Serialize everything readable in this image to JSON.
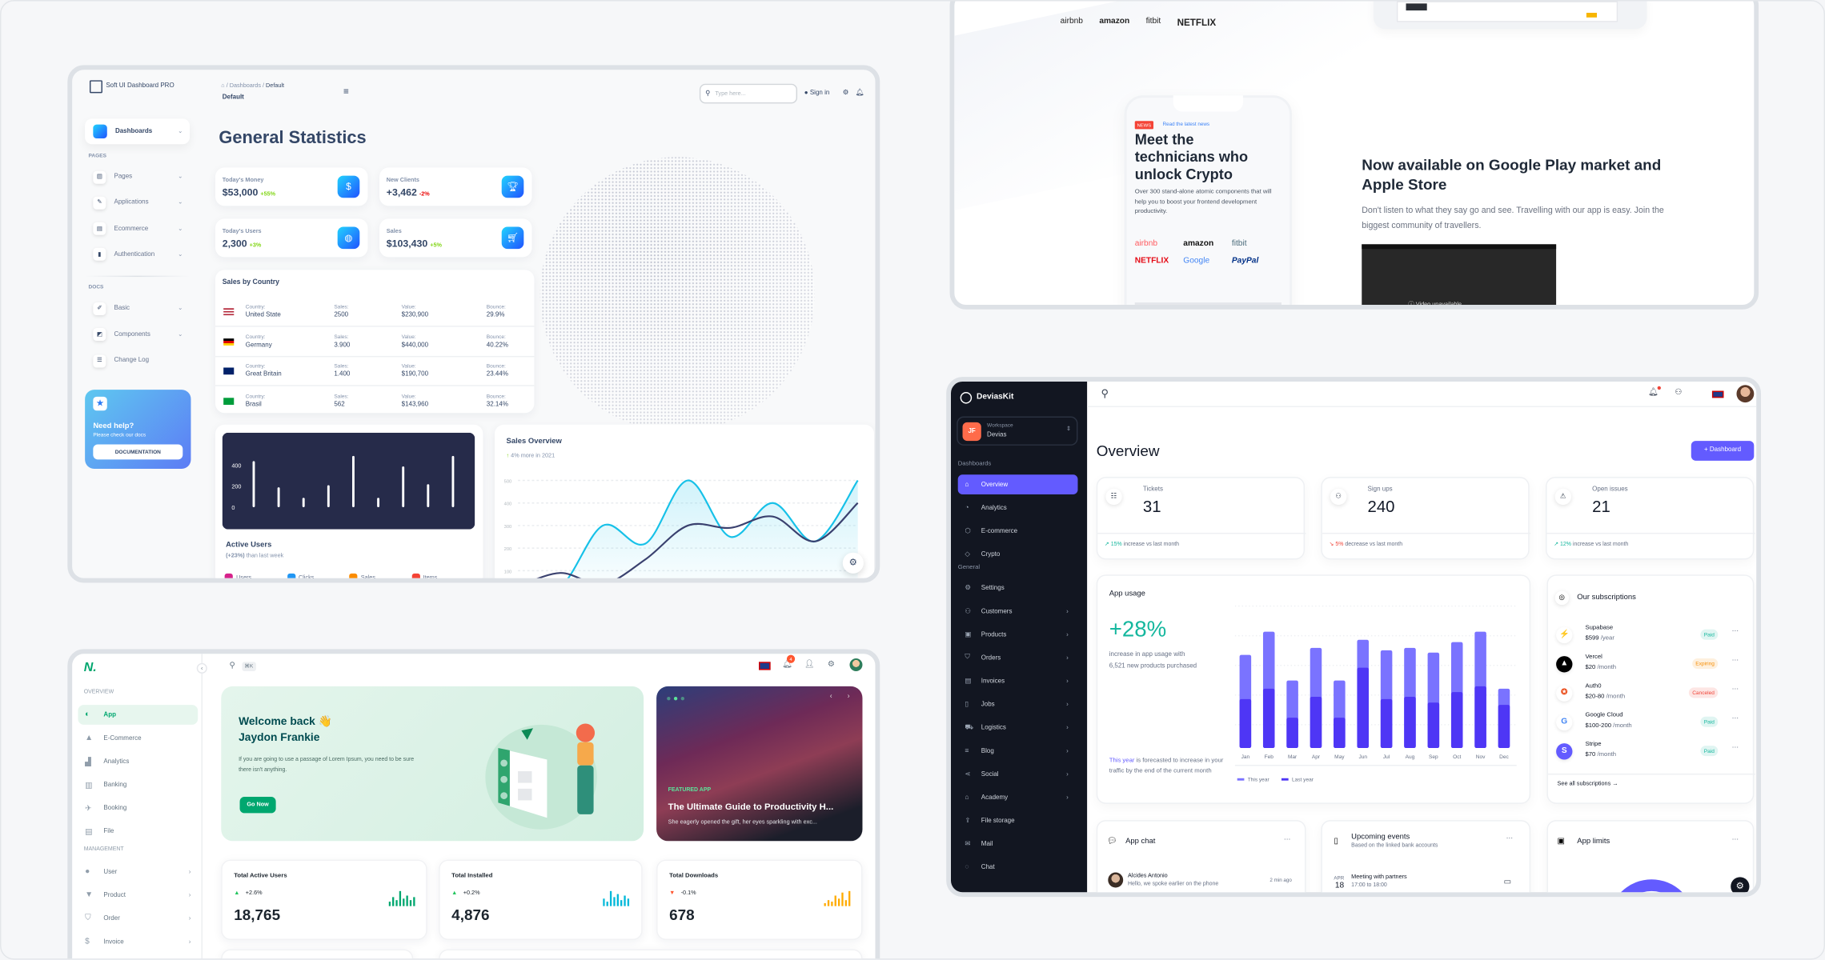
{
  "soft_ui": {
    "brand": "Soft UI Dashboard PRO",
    "breadcrumb": {
      "section": "Dashboards",
      "current": "Default",
      "title": "Default"
    },
    "search_placeholder": "Type here...",
    "sign_in": "Sign in",
    "sidebar": {
      "active": "Dashboards",
      "pages_heading": "PAGES",
      "pages": [
        "Pages",
        "Applications",
        "Ecommerce",
        "Authentication"
      ],
      "docs_heading": "DOCS",
      "docs": [
        "Basic",
        "Components",
        "Change Log"
      ]
    },
    "help": {
      "title": "Need help?",
      "subtitle": "Please check our docs",
      "button": "DOCUMENTATION"
    },
    "page_title": "General Statistics",
    "stats": [
      {
        "label": "Today's Money",
        "value": "$53,000",
        "change": "+55%",
        "icon": "dollar-icon"
      },
      {
        "label": "New Clients",
        "value": "+3,462",
        "change": "-2%",
        "icon": "trophy-icon"
      },
      {
        "label": "Today's Users",
        "value": "2,300",
        "change": "+3%",
        "icon": "globe-icon"
      },
      {
        "label": "Sales",
        "value": "$103,430",
        "change": "+5%",
        "icon": "cart-icon"
      }
    ],
    "sales_by_country": {
      "title": "Sales by Country",
      "headers": {
        "country": "Country:",
        "sales": "Sales:",
        "value": "Value:",
        "bounce": "Bounce:"
      },
      "rows": [
        {
          "country": "United State",
          "sales": "2500",
          "value": "$230,900",
          "bounce": "29.9%",
          "flag": "us"
        },
        {
          "country": "Germany",
          "sales": "3.900",
          "value": "$440,000",
          "bounce": "40.22%",
          "flag": "de"
        },
        {
          "country": "Great Britain",
          "sales": "1.400",
          "value": "$190,700",
          "bounce": "23.44%",
          "flag": "gb"
        },
        {
          "country": "Brasil",
          "sales": "562",
          "value": "$143,960",
          "bounce": "32.14%",
          "flag": "br"
        }
      ]
    },
    "active_users": {
      "title": "Active Users",
      "change": "(+23%)",
      "subtitle": "than last week",
      "legend": [
        "Users",
        "Clicks",
        "Sales",
        "Items"
      ]
    },
    "colors": {
      "positive": "#82d616",
      "negative": "#ea0606",
      "accent": "#17c1e8",
      "text": "#344767"
    }
  },
  "chart_data": [
    {
      "type": "bar",
      "y_ticks": [
        "400",
        "200",
        "0"
      ],
      "ylim": [
        0,
        500
      ],
      "values": [
        440,
        190,
        90,
        210,
        490,
        90,
        390,
        220,
        490
      ],
      "grid": false
    },
    {
      "type": "line",
      "title": "Sales Overview",
      "subtitle": "4% more in 2021",
      "y_ticks": [
        "500",
        "400",
        "300",
        "200",
        "100"
      ],
      "ylim": [
        0,
        500
      ],
      "grid": true,
      "series": [
        {
          "color": "#17c1e8",
          "values": [
            50,
            30,
            300,
            220,
            500,
            250,
            400,
            230,
            500
          ]
        },
        {
          "color": "#3a416f",
          "values": [
            30,
            90,
            40,
            150,
            300,
            290,
            340,
            230,
            400
          ]
        }
      ]
    },
    {
      "type": "bar",
      "title": "App usage",
      "categories": [
        "Jan",
        "Feb",
        "Mar",
        "Apr",
        "May",
        "Jun",
        "Jul",
        "Aug",
        "Sep",
        "Oct",
        "Nov",
        "Dec"
      ],
      "series": [
        {
          "name": "This year",
          "color": "#7a73ff",
          "values": [
            80,
            100,
            58,
            86,
            58,
            93,
            84,
            86,
            82,
            91,
            100,
            51
          ]
        },
        {
          "name": "Last year",
          "color": "#4e36f5",
          "values": [
            42,
            51,
            26,
            44,
            26,
            69,
            42,
            44,
            39,
            48,
            53,
            37
          ]
        }
      ],
      "grid": true,
      "legend": "bottom-left"
    }
  ],
  "landing": {
    "top_logos": [
      "airbnb",
      "amazon",
      "fitbit",
      "NETFLIX"
    ],
    "news_badge": "NEWS",
    "news_link": "Read the latest news",
    "phone_heading": "Meet the technicians who unlock Crypto",
    "phone_text": "Over 300 stand-alone atomic components that will help you to boost your frontend development productivity.",
    "phone_logos": [
      "airbnb",
      "amazon",
      "fitbit",
      "NETFLIX",
      "Google",
      "PayPal"
    ],
    "heading": "Now available on Google Play market and Apple Store",
    "text": "Don't listen to what they say go and see. Travelling with our app is easy. Join the biggest community of travellers.",
    "video_message": "Video unavailable"
  },
  "deviaskit": {
    "brand": "DeviasKit",
    "workspace": {
      "label": "Workspace",
      "name": "Devias",
      "initials": "JF"
    },
    "nav_sections": [
      {
        "heading": "Dashboards",
        "items": [
          {
            "label": "Overview",
            "icon": "home-icon",
            "active": true
          },
          {
            "label": "Analytics",
            "icon": "analytics-icon"
          },
          {
            "label": "E-commerce",
            "icon": "cube-icon"
          },
          {
            "label": "Crypto",
            "icon": "currency-icon"
          }
        ]
      },
      {
        "heading": "General",
        "items": [
          {
            "label": "Settings",
            "icon": "gear-icon"
          },
          {
            "label": "Customers",
            "icon": "users-icon",
            "chevron": true
          },
          {
            "label": "Products",
            "icon": "box-icon",
            "chevron": true
          },
          {
            "label": "Orders",
            "icon": "cart-icon",
            "chevron": true
          },
          {
            "label": "Invoices",
            "icon": "receipt-icon",
            "chevron": true
          },
          {
            "label": "Jobs",
            "icon": "clipboard-icon",
            "chevron": true
          },
          {
            "label": "Logistics",
            "icon": "truck-icon",
            "chevron": true
          },
          {
            "label": "Blog",
            "icon": "list-icon",
            "chevron": true
          },
          {
            "label": "Social",
            "icon": "share-icon",
            "chevron": true
          },
          {
            "label": "Academy",
            "icon": "graduation-icon",
            "chevron": true
          },
          {
            "label": "File storage",
            "icon": "upload-icon"
          },
          {
            "label": "Mail",
            "icon": "mail-icon"
          },
          {
            "label": "Chat",
            "icon": "chat-icon"
          }
        ]
      }
    ],
    "page_title": "Overview",
    "add_button": "Dashboard",
    "stats": [
      {
        "label": "Tickets",
        "value": "31",
        "change": "15%",
        "trend": "increase vs last month",
        "direction": "up",
        "icon": "list-check-icon"
      },
      {
        "label": "Sign ups",
        "value": "240",
        "change": "5%",
        "trend": "decrease vs last month",
        "direction": "down",
        "icon": "users-icon"
      },
      {
        "label": "Open issues",
        "value": "21",
        "change": "12%",
        "trend": "increase vs last month",
        "direction": "up",
        "icon": "warning-icon"
      }
    ],
    "app_usage": {
      "title": "App usage",
      "headline": "+28%",
      "description": "increase in app usage with",
      "description2": "6,521 new products purchased",
      "forecast_highlight": "This year",
      "forecast": "is forecasted to increase in your traffic by the end of the current month"
    },
    "subscriptions": {
      "title": "Our subscriptions",
      "items": [
        {
          "name": "Supabase",
          "price": "$599",
          "period": "/year",
          "status": "Paid",
          "status_color": "#15b79e"
        },
        {
          "name": "Vercel",
          "price": "$20",
          "period": "/month",
          "status": "Expiring",
          "status_color": "#f79009"
        },
        {
          "name": "Auth0",
          "price": "$20-80",
          "period": "/month",
          "status": "Canceled",
          "status_color": "#f04438"
        },
        {
          "name": "Google Cloud",
          "price": "$100-200",
          "period": "/month",
          "status": "Paid",
          "status_color": "#15b79e"
        },
        {
          "name": "Stripe",
          "price": "$70",
          "period": "/month",
          "status": "Paid",
          "status_color": "#15b79e"
        }
      ],
      "see_all": "See all subscriptions"
    },
    "app_chat": {
      "title": "App chat",
      "sender": "Alcides Antonio",
      "message": "Hello, we spoke earlier on the phone",
      "time": "2 min ago"
    },
    "events": {
      "title": "Upcoming events",
      "subtitle": "Based on the linked bank accounts",
      "month": "APR",
      "day": "18",
      "event": "Meeting with partners",
      "time": "17:00 to 18:00"
    },
    "app_limits": {
      "title": "App limits"
    },
    "colors": {
      "primary": "#635bff",
      "sidebar": "#121621",
      "success": "#15b79e",
      "error": "#f04438"
    }
  },
  "minimal": {
    "search_shortcut": "⌘K",
    "notification_count": "4",
    "sections": [
      {
        "heading": "OVERVIEW",
        "items": [
          {
            "label": "App",
            "icon": "app-icon",
            "active": true
          },
          {
            "label": "E-Commerce",
            "icon": "bag-icon"
          },
          {
            "label": "Analytics",
            "icon": "analytics-icon"
          },
          {
            "label": "Banking",
            "icon": "bank-icon"
          },
          {
            "label": "Booking",
            "icon": "booking-icon"
          },
          {
            "label": "File",
            "icon": "file-icon"
          }
        ]
      },
      {
        "heading": "MANAGEMENT",
        "items": [
          {
            "label": "User",
            "icon": "user-icon",
            "chevron": true
          },
          {
            "label": "Product",
            "icon": "product-icon",
            "chevron": true
          },
          {
            "label": "Order",
            "icon": "cart-icon",
            "chevron": true
          },
          {
            "label": "Invoice",
            "icon": "invoice-icon",
            "chevron": true
          }
        ]
      }
    ],
    "welcome": {
      "title": "Welcome back 👋",
      "name": "Jaydon Frankie",
      "text": "If you are going to use a passage of Lorem Ipsum, you need to be sure there isn't anything.",
      "button": "Go Now"
    },
    "featured": {
      "tag": "FEATURED APP",
      "title": "The Ultimate Guide to Productivity H...",
      "text": "She eagerly opened the gift, her eyes sparkling with exc..."
    },
    "stats": [
      {
        "label": "Total Active Users",
        "change": "+2.6%",
        "value": "18,765",
        "color": "#00a76f",
        "spark": [
          3,
          6,
          4,
          10,
          5,
          7,
          4,
          6
        ]
      },
      {
        "label": "Total Installed",
        "change": "+0.2%",
        "value": "4,876",
        "color": "#00b8d9",
        "spark": [
          5,
          3,
          10,
          6,
          8,
          4,
          7,
          5
        ]
      },
      {
        "label": "Total Downloads",
        "change": "-0.1%",
        "value": "678",
        "color": "#ffab00",
        "spark": [
          2,
          4,
          3,
          7,
          5,
          9,
          4,
          10
        ]
      }
    ],
    "colors": {
      "primary": "#00a76f"
    }
  }
}
